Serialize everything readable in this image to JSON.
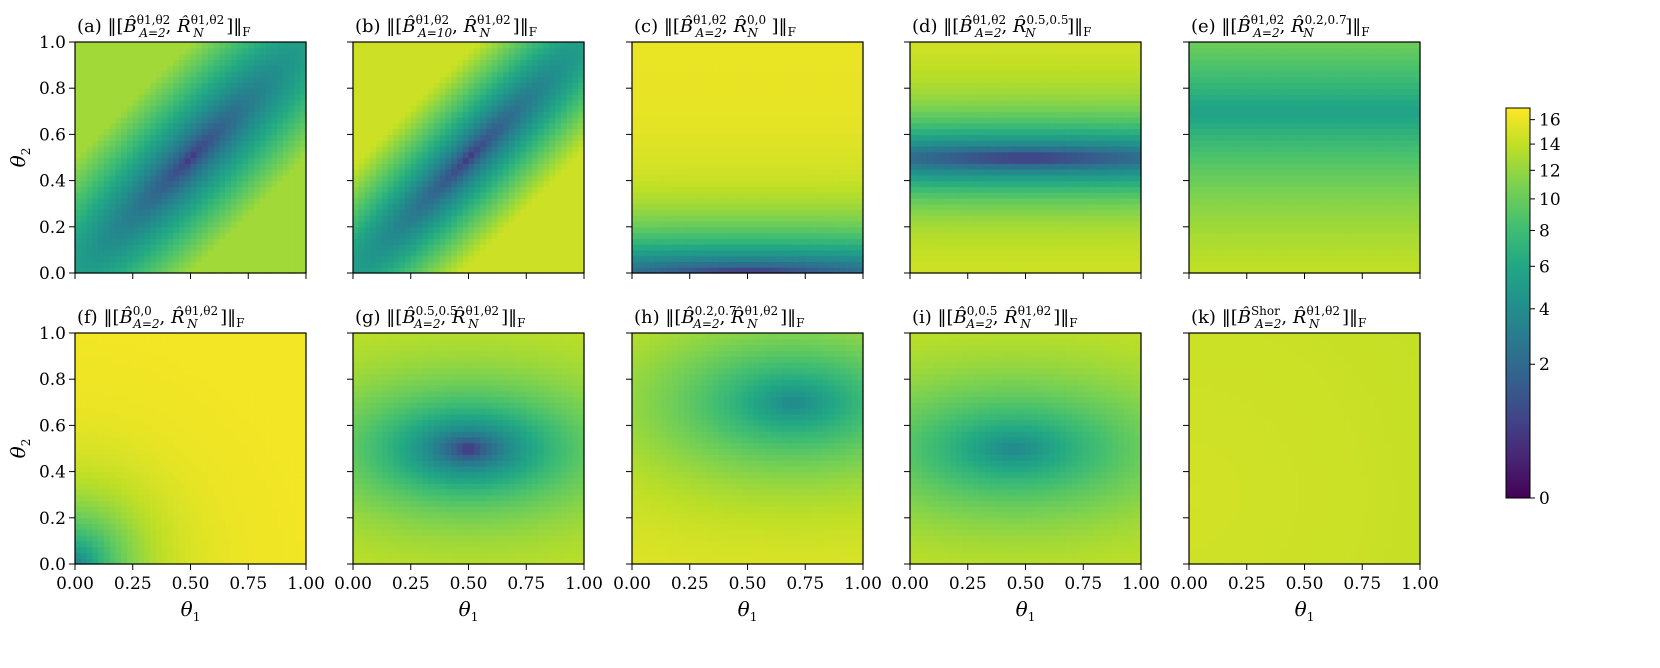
{
  "chart_data": {
    "type": "heatmap",
    "colormap": "viridis",
    "colorbar": {
      "ticks": [
        0,
        2,
        4,
        6,
        8,
        10,
        12,
        14,
        16
      ],
      "tick_labels": [
        "0",
        "2",
        "4",
        "6",
        "8",
        "10",
        "12",
        "14",
        "16"
      ],
      "range": [
        0,
        17
      ]
    },
    "x_ticks": [
      "0.00",
      "0.25",
      "0.50",
      "0.75",
      "1.00"
    ],
    "y_ticks": [
      "0.0",
      "0.2",
      "0.4",
      "0.6",
      "0.8",
      "1.0"
    ],
    "x_label": "θ1",
    "y_label": "θ2",
    "panels": [
      {
        "id": "a",
        "label": "(a)",
        "commutator_left": "B̂_{A=2}^{θ1,θ2}",
        "commutator_right": "R̂_N^{θ1,θ2}",
        "title_text": "(a) ‖[B̂_{A=2}^{θ1,θ2}, R̂_N^{θ1,θ2}]‖_F",
        "field": {
          "kind": "diag",
          "min_at": [
            0.5,
            0.5
          ],
          "slope": 12.0,
          "spread": 5.0,
          "max": 12.5
        }
      },
      {
        "id": "b",
        "label": "(b)",
        "commutator_left": "B̂_{A=10}^{θ1,θ2}",
        "commutator_right": "R̂_N^{θ1,θ2}",
        "title_text": "(b) ‖[B̂_{A=10}^{θ1,θ2}, R̂_N^{θ1,θ2}]‖_F",
        "field": {
          "kind": "diag",
          "min_at": [
            0.5,
            0.5
          ],
          "slope": 15.0,
          "spread": 5.0,
          "max": 14.5
        }
      },
      {
        "id": "c",
        "label": "(c)",
        "commutator_left": "B̂_{A=2}^{θ1,θ2}",
        "commutator_right": "R̂_N^{0,0}",
        "title_text": "(c) ‖[B̂_{A=2}^{θ1,θ2}, R̂_N^{0,0}]‖_F",
        "field": {
          "kind": "yband",
          "center_y": 0.0,
          "scale_y": 2.2,
          "scale_x": 0.6,
          "max": 16.0,
          "min_at": [
            0.5,
            0.0
          ]
        }
      },
      {
        "id": "d",
        "label": "(d)",
        "commutator_left": "B̂_{A=2}^{θ1,θ2}",
        "commutator_right": "R̂_N^{0.5,0.5}",
        "title_text": "(d) ‖[B̂_{A=2}^{θ1,θ2}, R̂_N^{0.5,0.5}]‖_F",
        "field": {
          "kind": "yband",
          "center_y": 0.5,
          "scale_y": 2.6,
          "scale_x": 0.6,
          "max": 15.0,
          "min_at": [
            0.5,
            0.5
          ]
        }
      },
      {
        "id": "e",
        "label": "(e)",
        "commutator_left": "B̂_{A=2}^{θ1,θ2}",
        "commutator_right": "R̂_N^{0.2,0.7}",
        "title_text": "(e) ‖[B̂_{A=2}^{θ1,θ2}, R̂_N^{0.2,0.7}]‖_F",
        "field": {
          "kind": "yband",
          "center_y": 0.7,
          "scale_y": 1.0,
          "scale_x": 0.0,
          "max": 16.0,
          "base": 5.5,
          "min_at": [
            0.5,
            0.7
          ]
        }
      },
      {
        "id": "f",
        "label": "(f)",
        "commutator_left": "B̂_{A=2}^{0,0}",
        "commutator_right": "R̂_N^{θ1,θ2}",
        "title_text": "(f) ‖[B̂_{A=2}^{0,0}, R̂_N^{θ1,θ2}]‖_F",
        "field": {
          "kind": "radial",
          "center": [
            0.0,
            0.0
          ],
          "sx": 2.2,
          "sy": 2.2,
          "base": 3.0,
          "max": 16.5,
          "min_at": [
            0.0,
            0.0
          ]
        }
      },
      {
        "id": "g",
        "label": "(g)",
        "commutator_left": "B̂_{A=2}^{0.5,0.5}",
        "commutator_right": "R̂_N^{θ1,θ2}",
        "title_text": "(g) ‖[B̂_{A=2}^{0.5,0.5}, R̂_N^{θ1,θ2}]‖_F",
        "field": {
          "kind": "radial",
          "center": [
            0.5,
            0.5
          ],
          "sx": 1.2,
          "sy": 2.4,
          "base": 0.0,
          "max": 14.5,
          "min_at": [
            0.5,
            0.5
          ]
        }
      },
      {
        "id": "h",
        "label": "(h)",
        "commutator_left": "B̂_{A=2}^{0.2,0.7}",
        "commutator_right": "R̂_N^{θ1,θ2}",
        "title_text": "(h) ‖[B̂_{A=2}^{0.2,0.7}, R̂_N^{θ1,θ2}]‖_F",
        "field": {
          "kind": "radial",
          "center": [
            0.7,
            0.7
          ],
          "sx": 0.9,
          "sy": 1.8,
          "base": 3.5,
          "max": 16.0,
          "min_at": [
            0.7,
            0.7
          ]
        }
      },
      {
        "id": "i",
        "label": "(i)",
        "commutator_left": "B̂_{A=2}^{0,0.5}",
        "commutator_right": "R̂_N^{θ1,θ2}",
        "title_text": "(i) ‖[B̂_{A=2}^{0,0.5}, R̂_N^{θ1,θ2}]‖_F",
        "field": {
          "kind": "radial",
          "center": [
            0.45,
            0.5
          ],
          "sx": 0.9,
          "sy": 2.0,
          "base": 3.5,
          "max": 15.0,
          "min_at": [
            0.45,
            0.5
          ]
        }
      },
      {
        "id": "k",
        "label": "(k)",
        "commutator_left": "B̂_{A=2}^{Shor}",
        "commutator_right": "R̂_N^{θ1,θ2}",
        "title_text": "(k) ‖[B̂_{A=2}^{Shor}, R̂_N^{θ1,θ2}]‖_F",
        "field": {
          "kind": "radial",
          "center": [
            0.0,
            0.3
          ],
          "sx": 0.35,
          "sy": 0.35,
          "base": 12.0,
          "max": 14.8,
          "invert": true,
          "min_at": [
            1.0,
            1.0
          ]
        }
      }
    ]
  }
}
